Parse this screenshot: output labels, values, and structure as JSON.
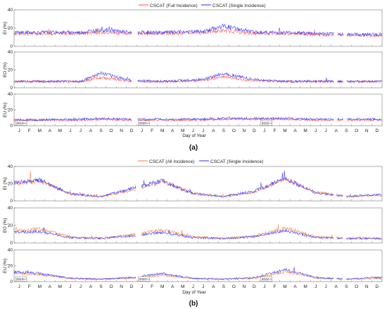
{
  "figure": {
    "panel_a": {
      "label": "(a)",
      "legend": [
        {
          "name": "CSCAT (Full Incidence)",
          "color": "#ff4d4d"
        },
        {
          "name": "CSCAT (Single Incidence)",
          "color": "#2b2bff"
        }
      ],
      "month_ticks": [
        "J",
        "F",
        "M",
        "A",
        "M",
        "J",
        "J",
        "A",
        "S",
        "O",
        "N",
        "D",
        "J",
        "F",
        "M",
        "A",
        "M",
        "J",
        "J",
        "A",
        "S",
        "O",
        "N",
        "D",
        "J",
        "F",
        "M",
        "A",
        "M",
        "J",
        "J",
        "A",
        "S",
        "O",
        "N",
        "D"
      ],
      "year_markers": [
        "2019",
        "2020",
        "2022"
      ]
    },
    "panel_b": {
      "label": "(b)",
      "legend": [
        {
          "name": "CSCAT (All Incidence)",
          "color": "#ff7b3a"
        },
        {
          "name": "CSCAT (Single Incidence)",
          "color": "#2b2bff"
        }
      ],
      "month_ticks": [
        "J",
        "F",
        "M",
        "A",
        "M",
        "J",
        "J",
        "A",
        "S",
        "O",
        "N",
        "D",
        "J",
        "F",
        "M",
        "A",
        "M",
        "J",
        "J",
        "A",
        "S",
        "O",
        "N",
        "D",
        "J",
        "F",
        "M",
        "A",
        "M",
        "J",
        "J",
        "A",
        "S",
        "O",
        "N",
        "D"
      ],
      "year_markers": [
        "2019",
        "2020",
        "2022"
      ]
    },
    "xlabel": "Day of Year"
  },
  "chart_data": [
    {
      "type": "line",
      "panel": "a",
      "ylabel": "EI (%)",
      "ylim": [
        0,
        40
      ],
      "yticks": [
        0,
        20,
        40
      ],
      "x": [
        "2019-Jan",
        "2019-Jul",
        "2019-Sep",
        "2019-Dec",
        "2020-Mar",
        "2020-Jul",
        "2020-Sep",
        "2020-Dec",
        "2022-Mar",
        "2022-Jun",
        "2022-Sep",
        "2022-Dec"
      ],
      "series": [
        {
          "name": "CSCAT (Full Incidence)",
          "values": [
            14,
            14,
            15,
            14,
            14,
            15,
            17,
            14,
            14,
            13,
            12,
            12
          ]
        },
        {
          "name": "CSCAT (Single Incidence)",
          "values": [
            15,
            15,
            18,
            15,
            15,
            16,
            22,
            15,
            15,
            14,
            13,
            13
          ]
        }
      ],
      "grid": false
    },
    {
      "type": "line",
      "panel": "a",
      "ylabel": "EO (%)",
      "ylim": [
        0,
        40
      ],
      "yticks": [
        0,
        20,
        40
      ],
      "x": [
        "2019-Jan",
        "2019-Jul",
        "2019-Sep",
        "2019-Dec",
        "2020-Mar",
        "2020-Jul",
        "2020-Sep",
        "2020-Dec",
        "2022-Mar",
        "2022-Jun",
        "2022-Sep",
        "2022-Dec"
      ],
      "series": [
        {
          "name": "CSCAT (Full Incidence)",
          "values": [
            7,
            7,
            11,
            7,
            7,
            8,
            12,
            8,
            7,
            7,
            7,
            7
          ]
        },
        {
          "name": "CSCAT (Single Incidence)",
          "values": [
            7,
            7,
            16,
            8,
            7,
            9,
            16,
            9,
            7,
            7,
            7,
            7
          ]
        }
      ],
      "grid": false
    },
    {
      "type": "line",
      "panel": "a",
      "ylabel": "EU (%)",
      "ylim": [
        0,
        40
      ],
      "yticks": [
        0,
        20,
        40
      ],
      "x": [
        "2019-Jan",
        "2019-Jul",
        "2019-Sep",
        "2019-Dec",
        "2020-Mar",
        "2020-Jul",
        "2020-Sep",
        "2020-Dec",
        "2022-Mar",
        "2022-Jun",
        "2022-Sep",
        "2022-Dec"
      ],
      "series": [
        {
          "name": "CSCAT (Full Incidence)",
          "values": [
            7,
            7,
            8,
            7,
            7,
            7,
            8,
            8,
            8,
            7,
            7,
            7
          ]
        },
        {
          "name": "CSCAT (Single Incidence)",
          "values": [
            7,
            8,
            9,
            8,
            8,
            8,
            9,
            9,
            9,
            8,
            8,
            8
          ]
        }
      ],
      "grid": false
    },
    {
      "type": "line",
      "panel": "b",
      "ylabel": "EI (%)",
      "ylim": [
        0,
        40
      ],
      "yticks": [
        0,
        20,
        40
      ],
      "x": [
        "2019-Jan",
        "2019-Mar",
        "2019-Jun",
        "2019-Sep",
        "2019-Dec",
        "2020-Mar",
        "2020-Jun",
        "2020-Sep",
        "2020-Dec",
        "2022-Mar",
        "2022-Jun",
        "2022-Sep",
        "2022-Dec"
      ],
      "series": [
        {
          "name": "CSCAT (All Incidence)",
          "values": [
            20,
            23,
            8,
            5,
            12,
            22,
            9,
            5,
            10,
            25,
            10,
            5,
            6
          ]
        },
        {
          "name": "CSCAT (Single Incidence)",
          "values": [
            21,
            24,
            8,
            5,
            14,
            23,
            8,
            5,
            11,
            26,
            9,
            5,
            7
          ]
        }
      ],
      "grid": false
    },
    {
      "type": "line",
      "panel": "b",
      "ylabel": "EO (%)",
      "ylim": [
        0,
        40
      ],
      "yticks": [
        0,
        20,
        40
      ],
      "x": [
        "2019-Jan",
        "2019-Mar",
        "2019-Jun",
        "2019-Sep",
        "2019-Dec",
        "2020-Mar",
        "2020-Jun",
        "2020-Sep",
        "2020-Dec",
        "2022-Mar",
        "2022-Jun",
        "2022-Sep",
        "2022-Dec"
      ],
      "series": [
        {
          "name": "CSCAT (All Incidence)",
          "values": [
            14,
            16,
            7,
            5,
            9,
            15,
            7,
            5,
            8,
            17,
            7,
            5,
            5
          ]
        },
        {
          "name": "CSCAT (Single Incidence)",
          "values": [
            12,
            13,
            6,
            5,
            8,
            12,
            6,
            5,
            7,
            14,
            6,
            5,
            5
          ]
        }
      ],
      "grid": false
    },
    {
      "type": "line",
      "panel": "b",
      "ylabel": "EU (%)",
      "ylim": [
        0,
        40
      ],
      "yticks": [
        0,
        20,
        40
      ],
      "x": [
        "2019-Jan",
        "2019-Mar",
        "2019-Jun",
        "2019-Sep",
        "2019-Dec",
        "2020-Mar",
        "2020-Jun",
        "2020-Sep",
        "2020-Dec",
        "2022-Mar",
        "2022-Jun",
        "2022-Sep",
        "2022-Dec"
      ],
      "series": [
        {
          "name": "CSCAT (All Incidence)",
          "values": [
            10,
            9,
            4,
            3,
            4,
            8,
            4,
            3,
            4,
            12,
            5,
            3,
            4
          ]
        },
        {
          "name": "CSCAT (Single Incidence)",
          "values": [
            12,
            10,
            4,
            3,
            5,
            10,
            4,
            3,
            5,
            15,
            5,
            3,
            5
          ]
        }
      ],
      "grid": false
    }
  ]
}
